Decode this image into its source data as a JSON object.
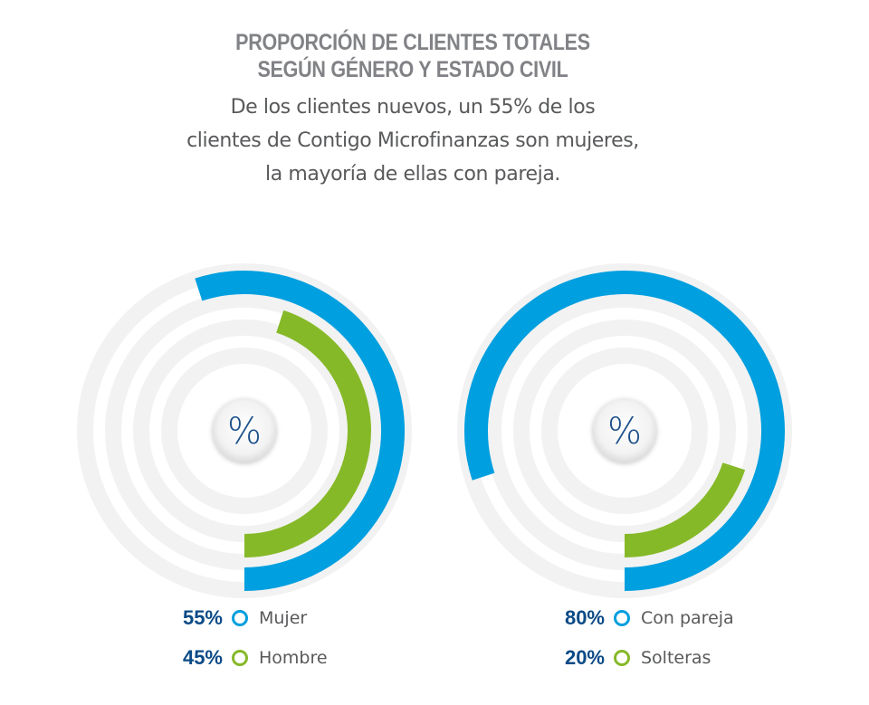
{
  "header": {
    "title_line1": "PROPORCIÓN DE CLIENTES TOTALES",
    "title_line2": "SEGÚN GÉNERO Y ESTADO CIVIL",
    "subtitle_line1": "De los clientes nuevos, un 55% de los",
    "subtitle_line2": "clientes de Contigo Microfinanzas son mujeres,",
    "subtitle_line3": "la mayoría de ellas con pareja."
  },
  "colors": {
    "blue": "#009fdf",
    "green": "#86b928",
    "track": "#eeeeee",
    "pct_text": "#0a4a86"
  },
  "chart_data": [
    {
      "type": "radial-bar",
      "center_symbol": "%",
      "series": [
        {
          "label": "Mujer",
          "value": 55,
          "value_label": "55%",
          "color": "#009fdf"
        },
        {
          "label": "Hombre",
          "value": 45,
          "value_label": "45%",
          "color": "#86b928"
        }
      ]
    },
    {
      "type": "radial-bar",
      "center_symbol": "%",
      "series": [
        {
          "label": "Con pareja",
          "value": 80,
          "value_label": "80%",
          "color": "#009fdf"
        },
        {
          "label": "Solteras",
          "value": 20,
          "value_label": "20%",
          "color": "#86b928"
        }
      ]
    }
  ]
}
